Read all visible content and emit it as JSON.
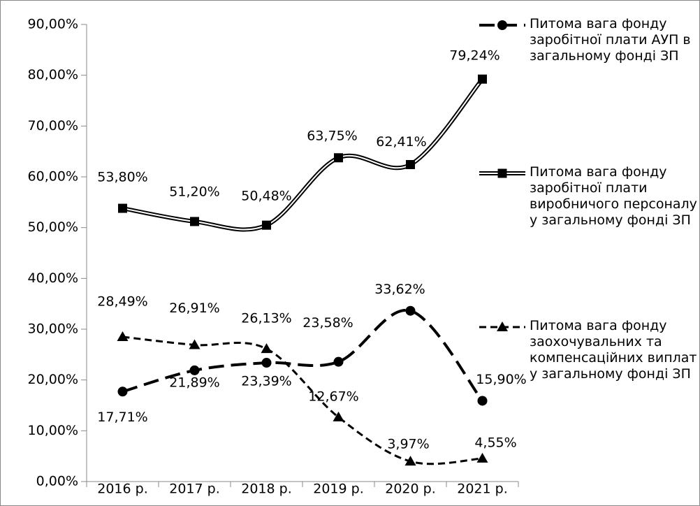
{
  "chart_data": {
    "type": "line",
    "categories": [
      "2016 р.",
      "2017 р.",
      "2018 р.",
      "2019 р.",
      "2020 р.",
      "2021 р."
    ],
    "series": [
      {
        "name": "Питома вага фонду заробітної плати АУП в загальному фонді ЗП",
        "color": "#000000",
        "style": "long-dash",
        "marker": "circle",
        "values": [
          17.71,
          21.89,
          23.39,
          23.58,
          33.62,
          15.9
        ],
        "value_labels": [
          "17,71%",
          "21,89%",
          "23,39%",
          "23,58%",
          "33,62%",
          "15,90%"
        ]
      },
      {
        "name": "Питома вага фонду заробітної плати виробничого персоналу у загальному фонді ЗП",
        "color": "#000000",
        "style": "double",
        "marker": "square",
        "values": [
          53.8,
          51.2,
          50.48,
          63.75,
          62.41,
          79.24
        ],
        "value_labels": [
          "53,80%",
          "51,20%",
          "50,48%",
          "63,75%",
          "62,41%",
          "79,24%"
        ]
      },
      {
        "name": "Питома вага фонду заохочувальних та компенсаційних виплат  у загальному фонді ЗП",
        "color": "#000000",
        "style": "dash",
        "marker": "triangle",
        "values": [
          28.49,
          26.91,
          26.13,
          12.67,
          3.97,
          4.55
        ],
        "value_labels": [
          "28,49%",
          "26,91%",
          "26,13%",
          "12,67%",
          "3,97%",
          "4,55%"
        ]
      }
    ],
    "ylim": [
      0,
      90
    ],
    "yticks": [
      {
        "value": 0,
        "label": "0,00%"
      },
      {
        "value": 10,
        "label": "10,00%"
      },
      {
        "value": 20,
        "label": "20,00%"
      },
      {
        "value": 30,
        "label": "30,00%"
      },
      {
        "value": 40,
        "label": "40,00%"
      },
      {
        "value": 50,
        "label": "50,00%"
      },
      {
        "value": 60,
        "label": "60,00%"
      },
      {
        "value": 70,
        "label": "70,00%"
      },
      {
        "value": 80,
        "label": "80,00%"
      },
      {
        "value": 90,
        "label": "90,00%"
      }
    ],
    "legend": "right",
    "smooth": true
  }
}
